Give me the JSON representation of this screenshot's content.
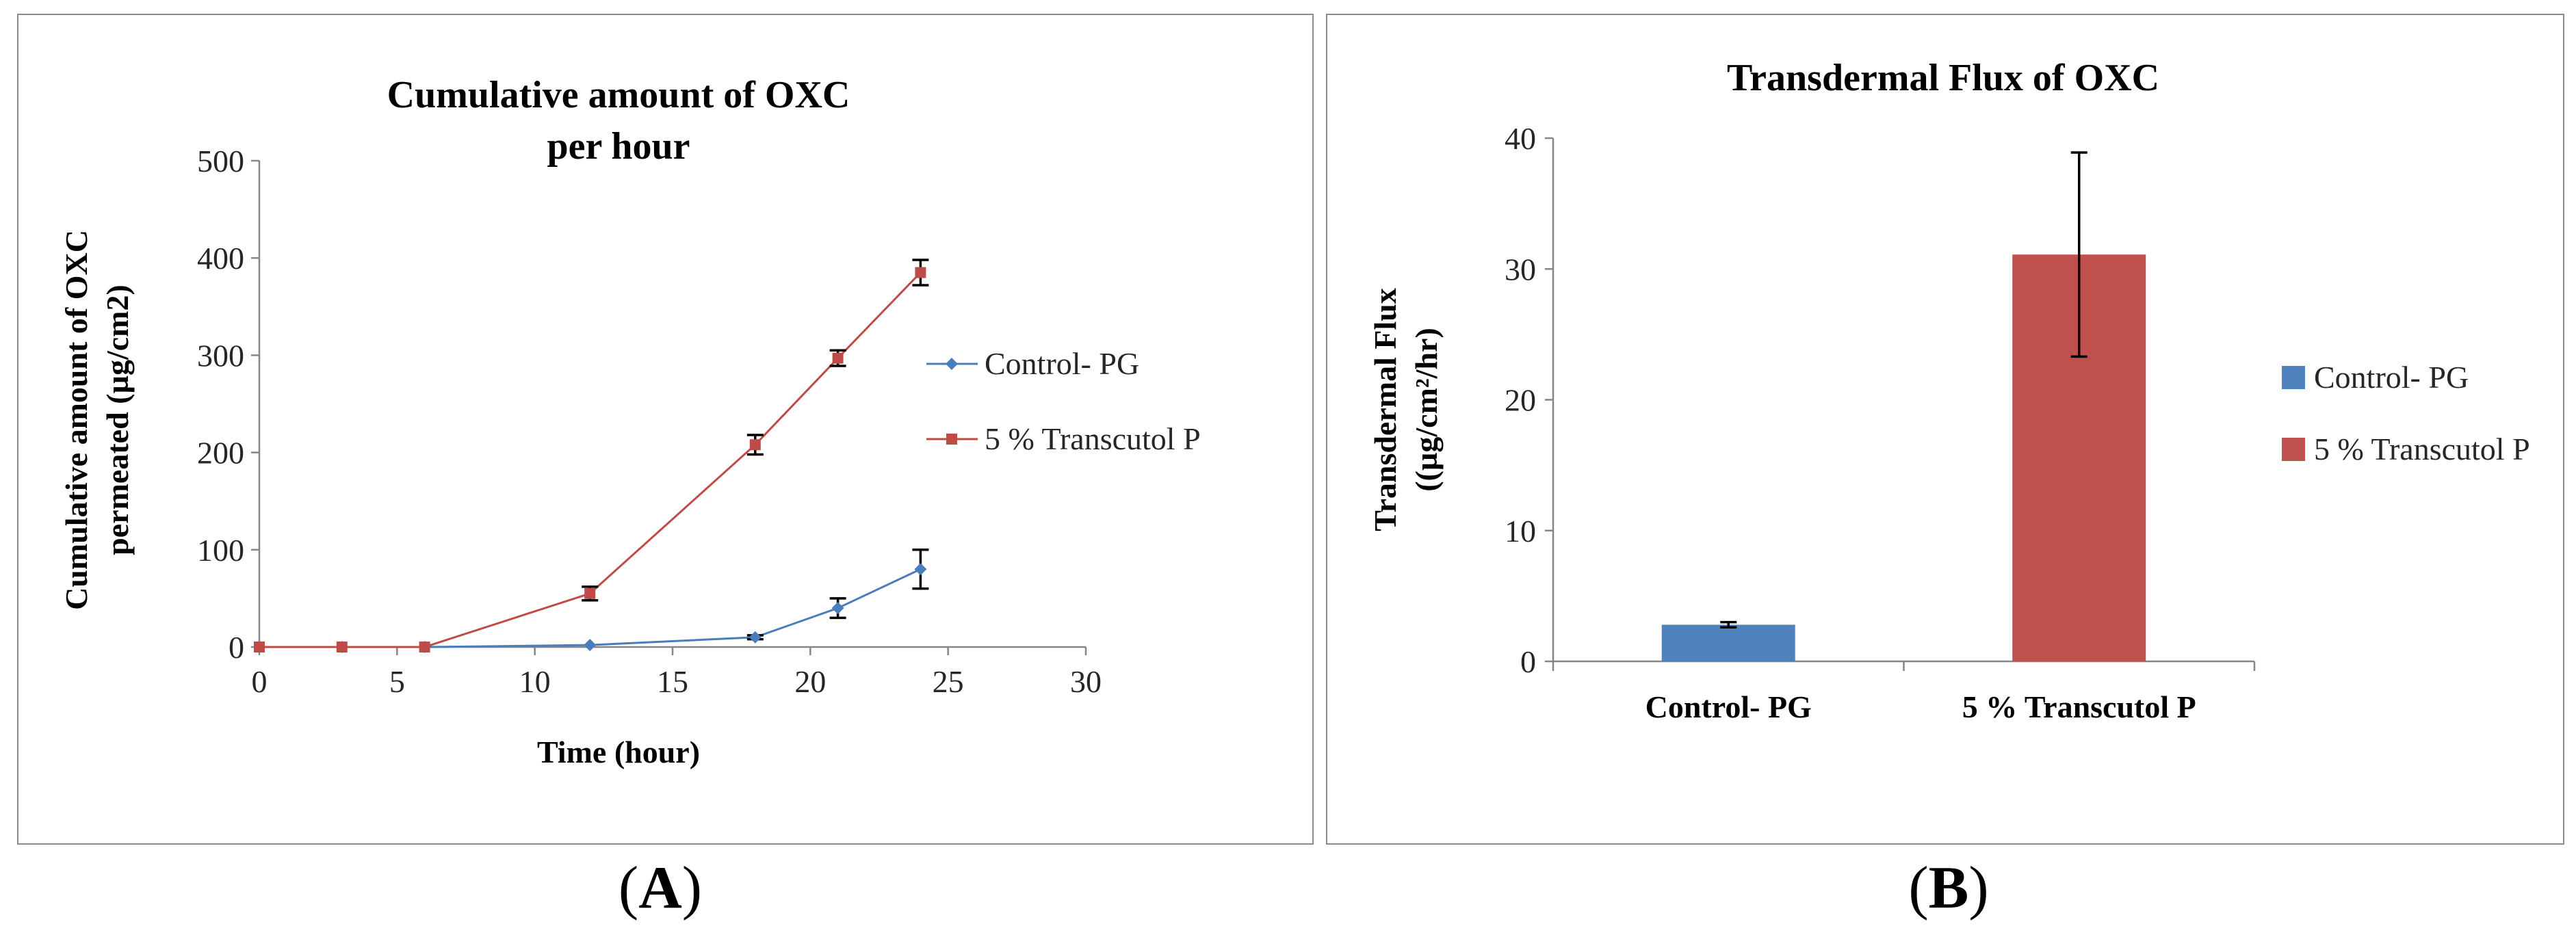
{
  "chart_data": [
    {
      "panel": "A",
      "type": "line",
      "title_lines": [
        "Cumulative amount of OXC",
        "per hour"
      ],
      "xlabel": "Time (hour)",
      "ylabel_lines": [
        "Cumulative amount of OXC",
        "permeated (µg/cm2)"
      ],
      "xlim": [
        0,
        30
      ],
      "ylim": [
        0,
        500
      ],
      "xticks": [
        0,
        5,
        10,
        15,
        20,
        25,
        30
      ],
      "yticks": [
        0,
        100,
        200,
        300,
        400,
        500
      ],
      "grid": false,
      "legend_position": "right",
      "x": [
        0,
        3,
        6,
        12,
        18,
        21,
        24
      ],
      "series": [
        {
          "name": "Control- PG",
          "color": "#4a7ebb",
          "marker": "diamond",
          "values": [
            0,
            0,
            0,
            2,
            10,
            40,
            80
          ],
          "errors": [
            0,
            0,
            0,
            0,
            2,
            10,
            20
          ]
        },
        {
          "name": "5 % Transcutol P",
          "color": "#be4b48",
          "marker": "square",
          "values": [
            0,
            0,
            0,
            55,
            208,
            297,
            385
          ],
          "errors": [
            0,
            0,
            0,
            7,
            10,
            8,
            13
          ]
        }
      ]
    },
    {
      "panel": "B",
      "type": "bar",
      "title": "Transdermal Flux of OXC",
      "ylabel_lines": [
        "Transdermal Flux",
        "((µg/cm²/hr)"
      ],
      "xlabel": "",
      "ylim": [
        0,
        40
      ],
      "yticks": [
        0,
        10,
        20,
        30,
        40
      ],
      "grid": false,
      "legend_position": "right",
      "categories": [
        "Control- PG",
        "5 % Transcutol P"
      ],
      "values": [
        2.8,
        31.1
      ],
      "errors": [
        0.2,
        7.8
      ],
      "colors": [
        "#4f81bd",
        "#c0504d"
      ]
    }
  ],
  "captions": {
    "a": "A",
    "b": "B"
  }
}
